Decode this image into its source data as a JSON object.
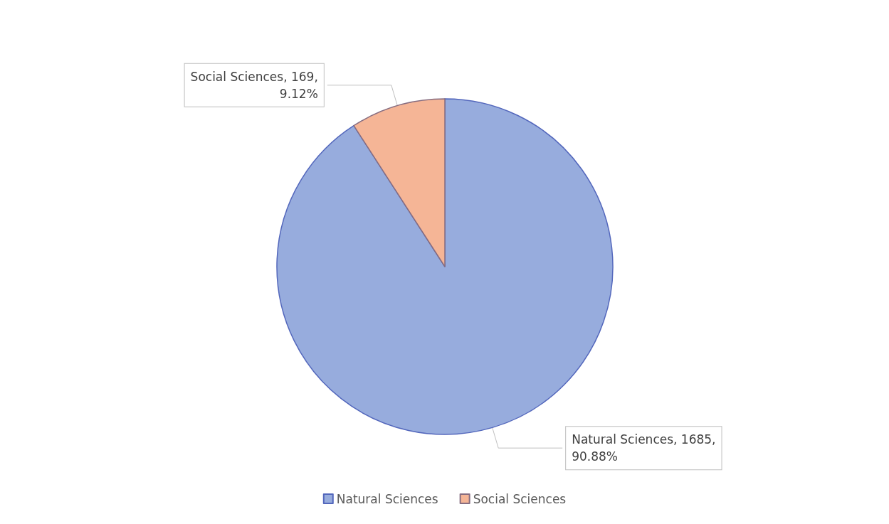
{
  "chart_data": {
    "type": "pie",
    "categories": [
      "Natural Sciences",
      "Social Sciences"
    ],
    "values": [
      90.88,
      9.12
    ],
    "value_labels": [
      ", 1685,\n90.88%",
      ", 169,\n9.12%"
    ],
    "colors": [
      "#97acdd",
      "#f5b596"
    ],
    "legend": "bottom"
  }
}
